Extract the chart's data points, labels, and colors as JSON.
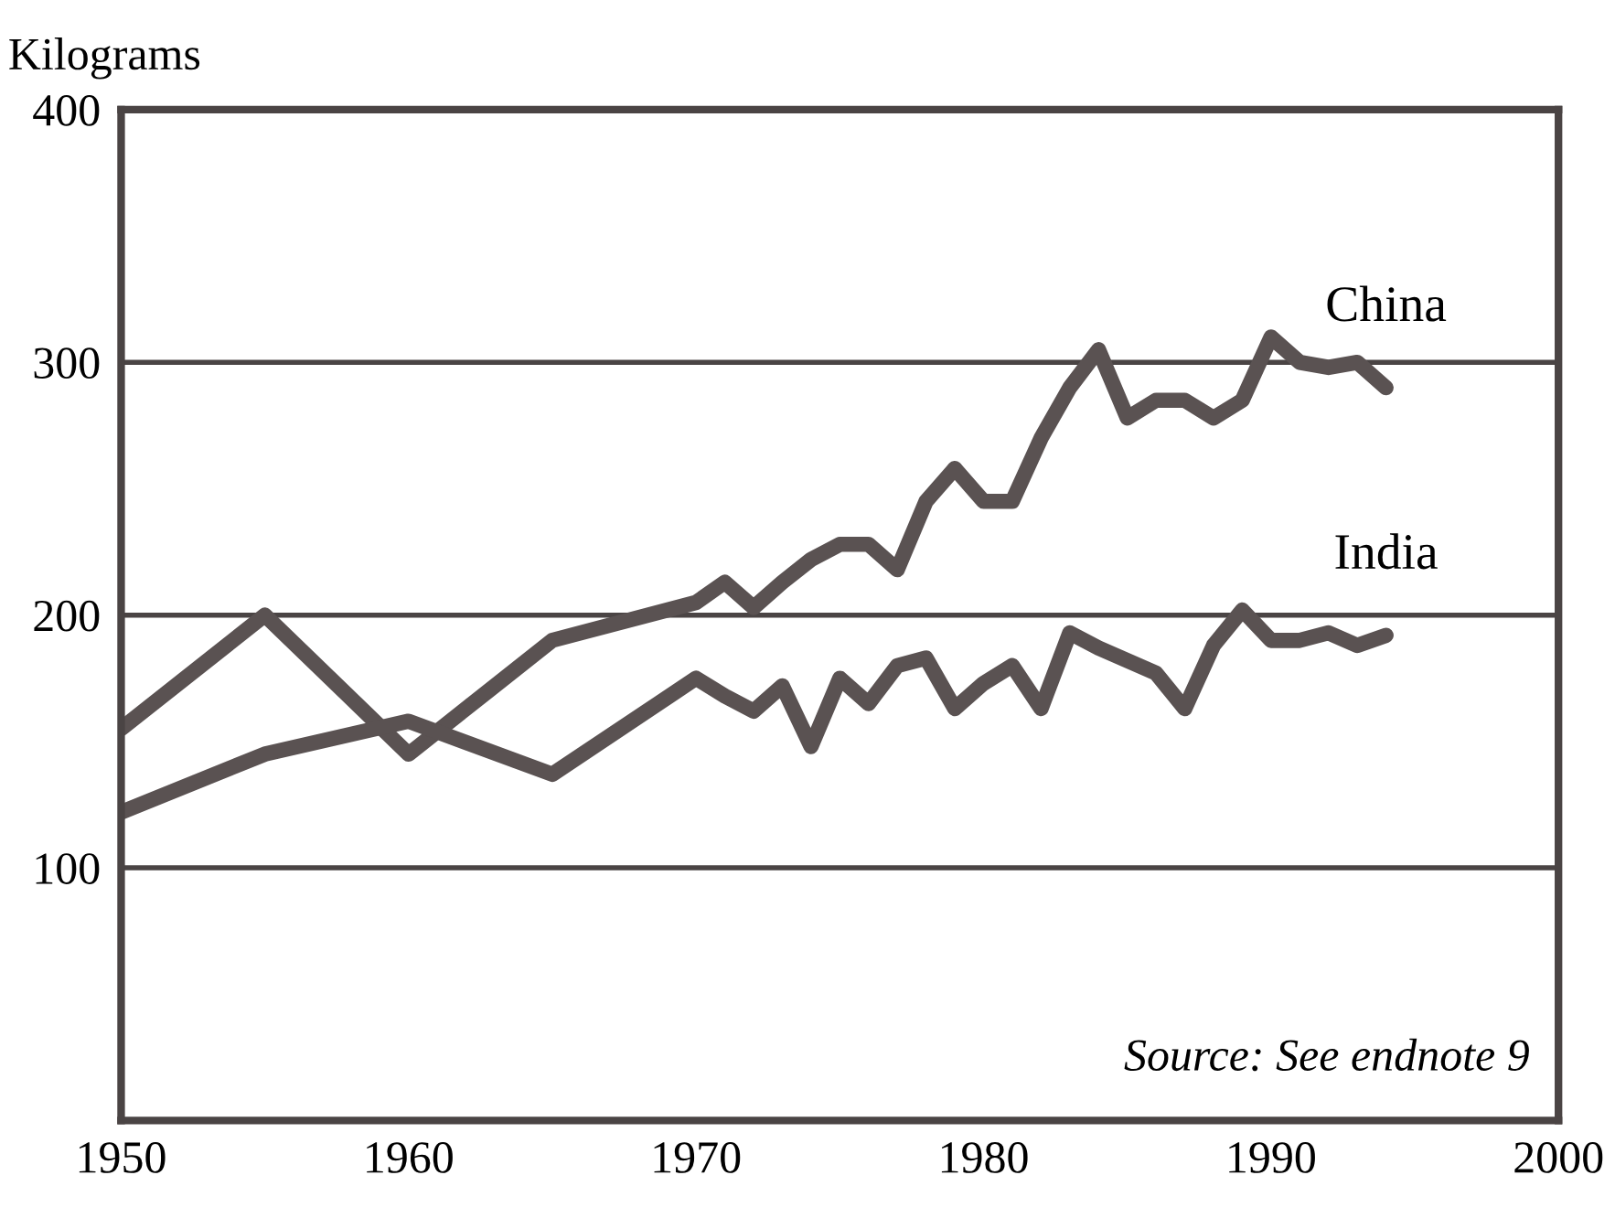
{
  "chart_data": {
    "type": "line",
    "ylabel": "Kilograms",
    "annotations": [
      "Source: See endnote 9"
    ],
    "x": [
      1950,
      1955,
      1960,
      1965,
      1970,
      1971,
      1972,
      1973,
      1974,
      1975,
      1976,
      1977,
      1978,
      1979,
      1980,
      1981,
      1982,
      1983,
      1984,
      1985,
      1986,
      1987,
      1988,
      1989,
      1990,
      1991,
      1992,
      1993,
      1994
    ],
    "series": [
      {
        "name": "China",
        "color": "#5a5252",
        "values": [
          155,
          200,
          145,
          190,
          205,
          213,
          203,
          213,
          222,
          228,
          228,
          218,
          245,
          258,
          245,
          245,
          270,
          290,
          305,
          278,
          285,
          285,
          278,
          285,
          310,
          300,
          298,
          300,
          290
        ]
      },
      {
        "name": "India",
        "color": "#5a5252",
        "values": [
          122,
          145,
          158,
          137,
          175,
          168,
          162,
          172,
          148,
          175,
          165,
          180,
          183,
          163,
          173,
          180,
          163,
          193,
          187,
          182,
          177,
          163,
          188,
          202,
          190,
          190,
          193,
          188,
          192
        ]
      }
    ],
    "xlim": [
      1950,
      2000
    ],
    "ylim": [
      0,
      400
    ],
    "xticks": [
      1950,
      1960,
      1970,
      1980,
      1990,
      2000
    ],
    "yticks": [
      {
        "value": 0,
        "label": null
      },
      100,
      200,
      300,
      400
    ],
    "grid": "y",
    "legend": false,
    "marker": "none",
    "line_style": "solid"
  }
}
